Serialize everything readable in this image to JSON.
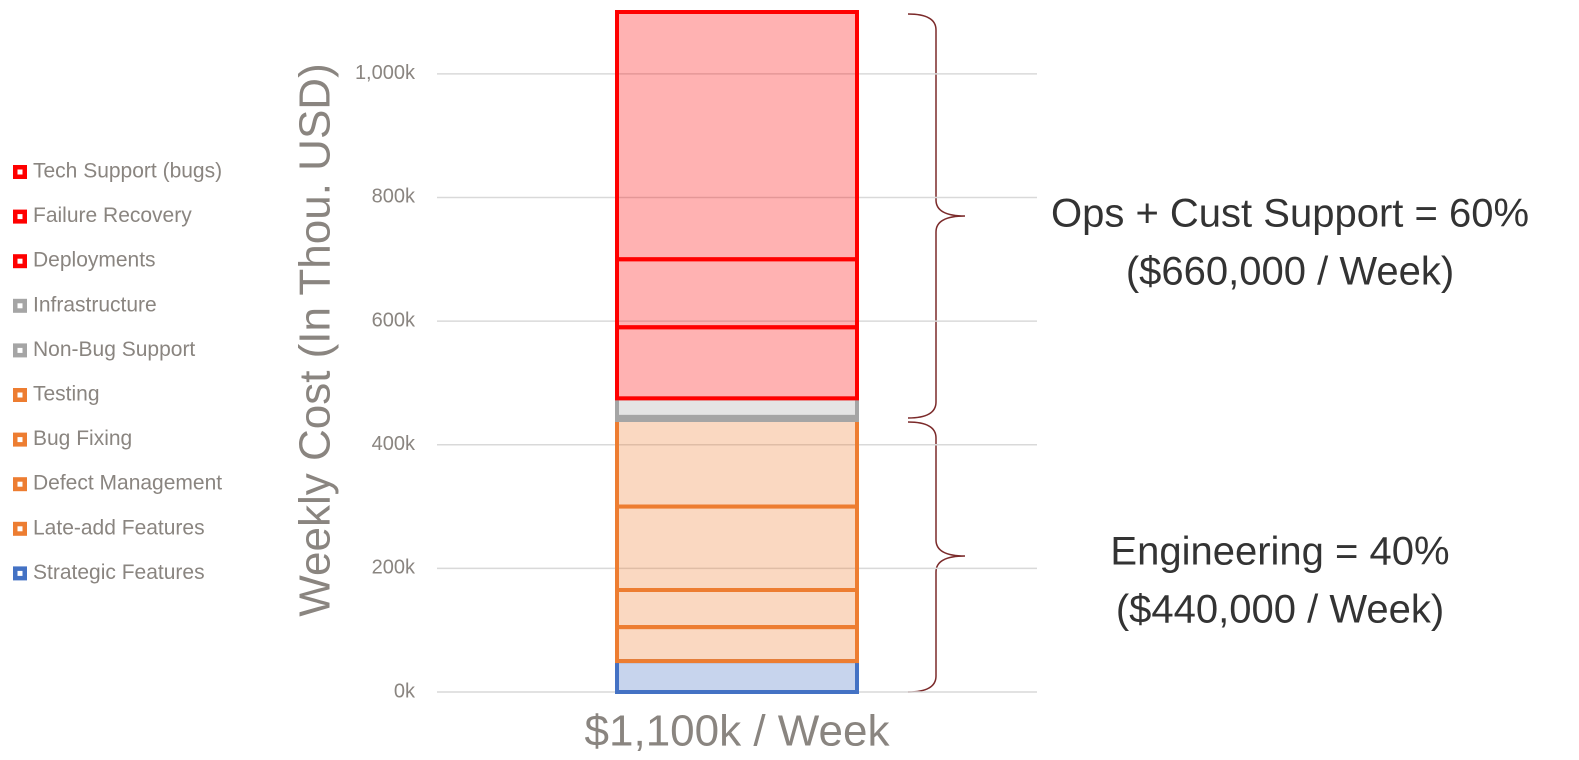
{
  "chart_data": {
    "type": "stacked_bar",
    "y_label": "Weekly Cost (In Thou. USD)",
    "categories": [
      "$1,100k / Week"
    ],
    "series": [
      {
        "name": "Strategic Features",
        "color": "#4472c4",
        "values": [
          50
        ]
      },
      {
        "name": "Late-add Features",
        "color": "#ed7d31",
        "values": [
          55
        ]
      },
      {
        "name": "Defect Management",
        "color": "#ed7d31",
        "values": [
          60
        ]
      },
      {
        "name": "Bug Fixing",
        "color": "#ed7d31",
        "values": [
          135
        ]
      },
      {
        "name": "Testing",
        "color": "#ed7d31",
        "values": [
          140
        ]
      },
      {
        "name": "Non-Bug Support",
        "color": "#a5a5a5",
        "values": [
          5
        ]
      },
      {
        "name": "Infrastructure",
        "color": "#a5a5a5",
        "values": [
          30
        ]
      },
      {
        "name": "Deployments",
        "color": "#ff0000",
        "values": [
          115
        ]
      },
      {
        "name": "Failure Recovery",
        "color": "#ff0000",
        "values": [
          110
        ]
      },
      {
        "name": "Tech Support (bugs)",
        "color": "#ff0000",
        "values": [
          400
        ]
      }
    ],
    "ylim": [
      0,
      1100
    ],
    "yticks": [
      {
        "value": 0,
        "label": "0k"
      },
      {
        "value": 200,
        "label": "200k"
      },
      {
        "value": 400,
        "label": "400k"
      },
      {
        "value": 600,
        "label": "600k"
      },
      {
        "value": 800,
        "label": "800k"
      },
      {
        "value": 1000,
        "label": "1,000k"
      }
    ],
    "grid": true,
    "annotations": [
      "Ops + Cust Support = 60%",
      "($660,000 / Week)",
      "Engineering = 40%",
      "($440,000 / Week)"
    ]
  }
}
